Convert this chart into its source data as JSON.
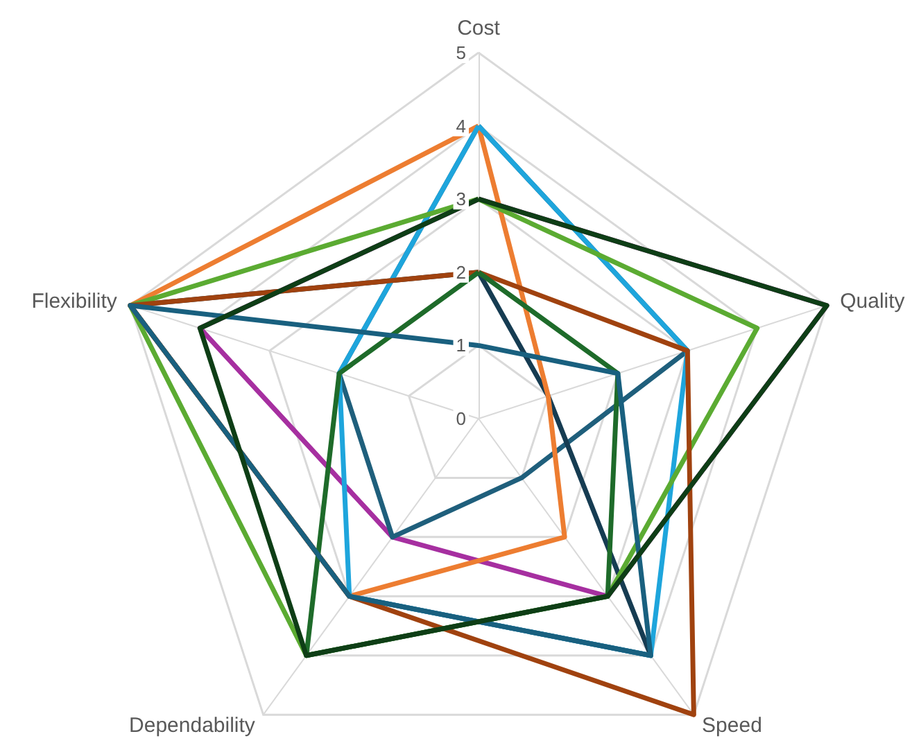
{
  "chart_data": {
    "type": "radar",
    "categories": [
      "Cost",
      "Quality",
      "Speed",
      "Dependability",
      "Flexibility"
    ],
    "ylim": [
      0,
      5
    ],
    "yticks": [
      0,
      1,
      2,
      3,
      4,
      5
    ],
    "grid": true,
    "marker": "none",
    "series": [
      {
        "color": "#a62fa0",
        "values": [
          3,
          5,
          3,
          2,
          4
        ]
      },
      {
        "color": "#1f5f7c",
        "values": [
          4,
          3,
          1,
          2,
          2
        ]
      },
      {
        "color": "#163c52",
        "values": [
          2,
          1,
          4,
          3,
          5
        ]
      },
      {
        "color": "#ed7d31",
        "values": [
          4,
          1,
          2,
          3,
          5
        ]
      },
      {
        "color": "#1ea5dc",
        "values": [
          4,
          3,
          4,
          3,
          2
        ]
      },
      {
        "color": "#5bab32",
        "values": [
          3,
          4,
          3,
          4,
          5
        ]
      },
      {
        "color": "#a0420f",
        "values": [
          2,
          3,
          5,
          3,
          5
        ]
      },
      {
        "color": "#1e6b2a",
        "values": [
          2,
          2,
          3,
          4,
          2
        ]
      },
      {
        "color": "#19607f",
        "values": [
          1,
          2,
          4,
          3,
          5
        ]
      },
      {
        "color": "#0e3e16",
        "values": [
          3,
          5,
          3,
          4,
          4
        ]
      }
    ]
  }
}
